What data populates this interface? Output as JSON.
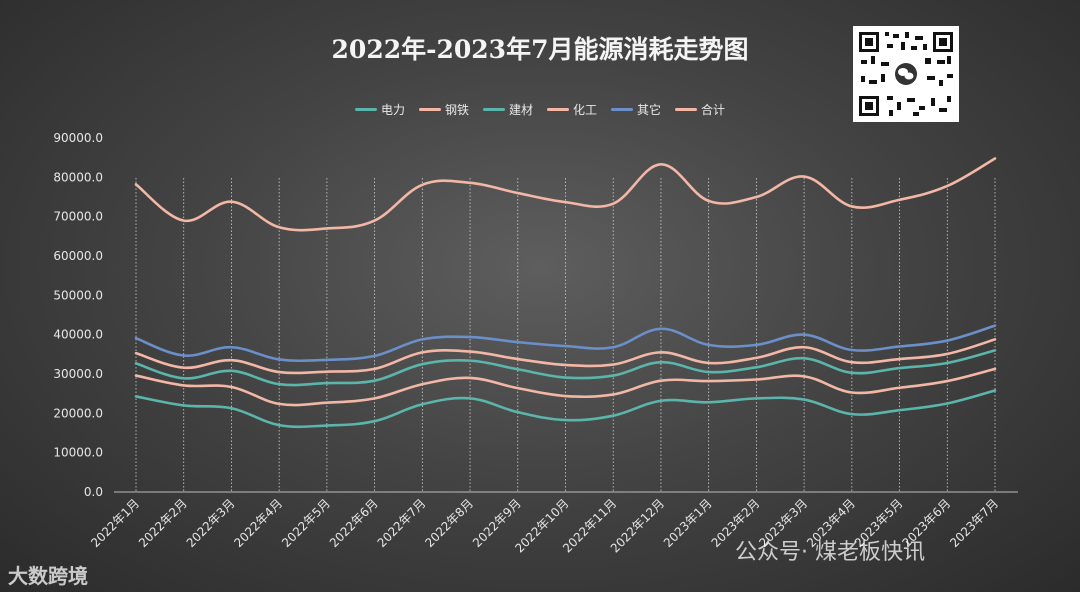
{
  "chart_data": {
    "type": "line",
    "title": "2022年-2023年7月能源消耗走势图",
    "categories": [
      "2022年1月",
      "2022年2月",
      "2022年3月",
      "2022年4月",
      "2022年5月",
      "2022年6月",
      "2022年7月",
      "2022年8月",
      "2022年9月",
      "2022年10月",
      "2022年11月",
      "2022年12月",
      "2023年1月",
      "2023年2月",
      "2023年3月",
      "2023年4月",
      "2023年5月",
      "2023年6月",
      "2023年7月"
    ],
    "ylim": [
      0,
      90000
    ],
    "yticks": [
      "0.0",
      "10000.0",
      "20000.0",
      "30000.0",
      "40000.0",
      "50000.0",
      "60000.0",
      "70000.0",
      "80000.0",
      "90000.0"
    ],
    "yticks_values": [
      0,
      10000,
      20000,
      30000,
      40000,
      50000,
      60000,
      70000,
      80000,
      90000
    ],
    "grid": "vertical dotted",
    "legend_position": "top",
    "series": [
      {
        "name": "电力",
        "color": "#5ab5ab",
        "values": [
          24300,
          22000,
          21300,
          17000,
          16900,
          18000,
          22300,
          23800,
          20300,
          18300,
          19400,
          23200,
          22800,
          23800,
          23500,
          19800,
          20800,
          22500,
          25800
        ]
      },
      {
        "name": "钢铁",
        "color": "#f3b7a6",
        "values": [
          29600,
          27100,
          26700,
          22400,
          22700,
          23800,
          27400,
          29000,
          26400,
          24400,
          24800,
          28300,
          28200,
          28600,
          29400,
          25300,
          26500,
          28200,
          31300
        ]
      },
      {
        "name": "建材",
        "color": "#5ab5ab",
        "values": [
          32700,
          28900,
          30800,
          27400,
          27700,
          28300,
          32500,
          33400,
          31200,
          29100,
          29600,
          33000,
          30500,
          31700,
          34000,
          30300,
          31500,
          32800,
          36000
        ]
      },
      {
        "name": "化工",
        "color": "#f3b7a6",
        "values": [
          35300,
          31600,
          33500,
          30500,
          30600,
          31300,
          35500,
          35700,
          33800,
          32300,
          32400,
          35500,
          32800,
          34100,
          36800,
          33000,
          33800,
          35100,
          38800
        ]
      },
      {
        "name": "其它",
        "color": "#6b8fc8",
        "values": [
          39100,
          34700,
          36800,
          33700,
          33600,
          34600,
          38800,
          39400,
          38100,
          37100,
          36800,
          41500,
          37400,
          37400,
          40000,
          36100,
          37000,
          38500,
          42300
        ]
      },
      {
        "name": "合计",
        "color": "#f3b7a6",
        "values": [
          78200,
          69000,
          73800,
          67300,
          67000,
          69000,
          78100,
          78600,
          76000,
          73700,
          73300,
          83300,
          74000,
          75000,
          80200,
          72600,
          74300,
          77800,
          84800
        ]
      }
    ]
  },
  "watermarks": {
    "left": "大数跨境",
    "right": "公众号· 煤老板快讯"
  },
  "qr_icon": "qr-code-icon"
}
